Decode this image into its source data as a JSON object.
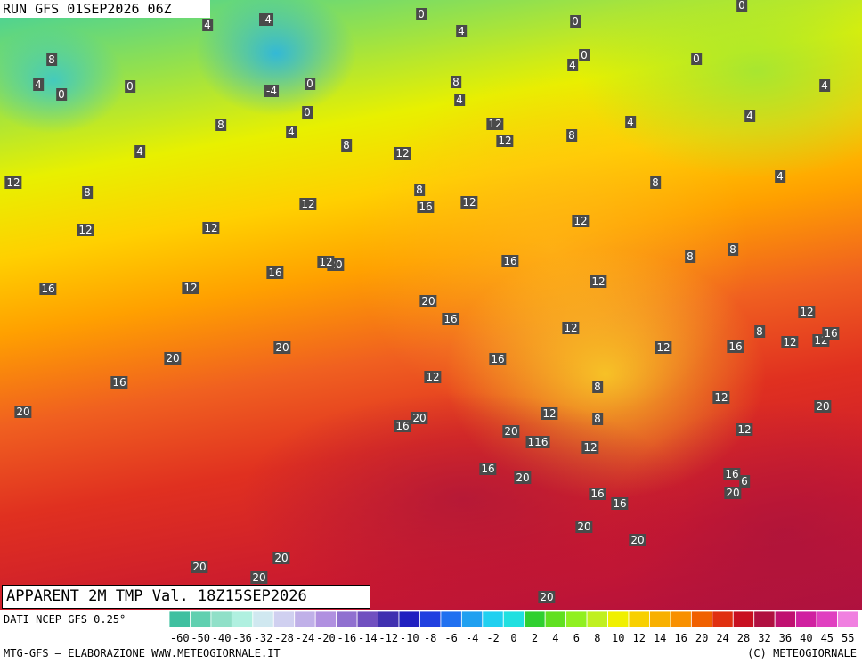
{
  "header": {
    "run": "RUN GFS 01SEP2026 06Z",
    "title": "APPARENT 2M TMP Val. 18Z15SEP2026"
  },
  "map_labels": [
    4,
    -4,
    0,
    4,
    0,
    0,
    8,
    4,
    0,
    0,
    -4,
    0,
    0,
    8,
    4,
    4,
    0,
    0,
    4,
    8,
    4,
    4,
    8,
    12,
    12,
    12,
    8,
    4,
    4,
    12,
    8,
    8,
    16,
    12,
    12,
    8,
    4,
    12,
    12,
    12,
    8,
    8,
    16,
    20,
    12,
    16,
    16,
    12,
    12,
    20,
    16,
    12,
    12,
    8,
    12,
    12,
    16,
    20,
    12,
    16,
    20,
    16,
    16,
    12,
    8,
    12,
    20,
    20,
    20,
    16,
    12,
    8,
    12,
    20,
    116,
    12,
    16,
    20,
    16,
    6,
    20,
    16,
    16,
    20,
    20,
    20,
    20,
    20,
    20
  ],
  "legend": {
    "source": "DATI NCEP GFS 0.25°",
    "ticks": [
      -60,
      -50,
      -40,
      -36,
      -32,
      -28,
      -24,
      -20,
      -16,
      -14,
      -12,
      -10,
      -8,
      -6,
      -4,
      -2,
      0,
      2,
      4,
      6,
      8,
      10,
      12,
      14,
      16,
      20,
      24,
      28,
      32,
      36,
      40,
      45,
      55
    ],
    "colors": [
      "#40c0a0",
      "#60d0b0",
      "#90e0c8",
      "#b0f0e0",
      "#d0e8f0",
      "#d0d0f0",
      "#c0b0e8",
      "#b090e0",
      "#9070d0",
      "#7050c0",
      "#4030b0",
      "#2020c0",
      "#2040e0",
      "#2070f0",
      "#20a0f0",
      "#20d0f0",
      "#20e0e0",
      "#30d030",
      "#60e020",
      "#90f020",
      "#c0f020",
      "#f0f000",
      "#f8d000",
      "#f8b000",
      "#f89000",
      "#f06000",
      "#e03010",
      "#c81020",
      "#b01040",
      "#c01070",
      "#d020a0",
      "#e040c0",
      "#f080e0"
    ]
  },
  "footer": {
    "credit": "MTG-GFS — ELABORAZIONE WWW.METEOGIORNALE.IT",
    "copyright": "(C) METEOGIORNALE"
  }
}
